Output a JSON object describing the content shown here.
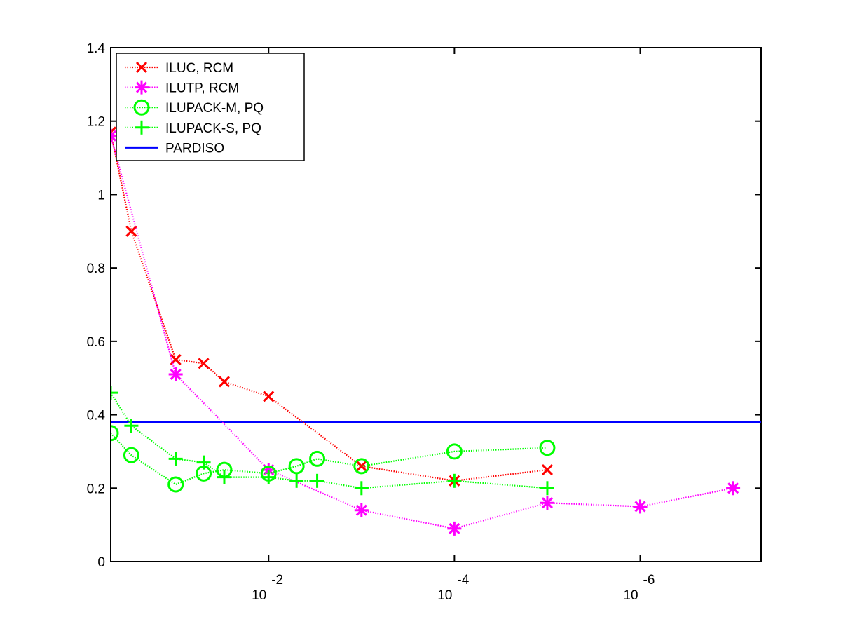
{
  "chart_data": {
    "type": "line",
    "title": "",
    "xlabel": "",
    "ylabel": "",
    "x_scale": "log",
    "x_reversed": true,
    "xlim": [
      0.5,
      5e-08
    ],
    "ylim": [
      0,
      1.4
    ],
    "x_ticks": [
      {
        "value": 0.01,
        "base": "10",
        "exp": "-2"
      },
      {
        "value": 0.0001,
        "base": "10",
        "exp": "-4"
      },
      {
        "value": 1e-06,
        "base": "10",
        "exp": "-6"
      }
    ],
    "y_ticks": [
      "0",
      "0.2",
      "0.4",
      "0.6",
      "0.8",
      "1",
      "1.2",
      "1.4"
    ],
    "y_tick_values": [
      0,
      0.2,
      0.4,
      0.6,
      0.8,
      1.0,
      1.2,
      1.4
    ],
    "legend_position": "top-left",
    "series": [
      {
        "name": "ILUC, RCM",
        "color": "#ff0000",
        "marker": "x",
        "line": "dotted",
        "points": [
          [
            0.5,
            1.17
          ],
          [
            0.3,
            0.9
          ],
          [
            0.1,
            0.55
          ],
          [
            0.05,
            0.54
          ],
          [
            0.03,
            0.49
          ],
          [
            0.01,
            0.45
          ],
          [
            0.001,
            0.26
          ],
          [
            0.0001,
            0.22
          ],
          [
            1e-05,
            0.25
          ]
        ]
      },
      {
        "name": "ILUTP, RCM",
        "color": "#ff00ff",
        "marker": "asterisk",
        "line": "dotted",
        "points": [
          [
            0.5,
            1.16
          ],
          [
            0.1,
            0.51
          ],
          [
            0.01,
            0.25
          ],
          [
            0.001,
            0.14
          ],
          [
            0.0001,
            0.09
          ],
          [
            1e-05,
            0.16
          ],
          [
            1e-06,
            0.15
          ],
          [
            1e-07,
            0.2
          ]
        ]
      },
      {
        "name": "ILUPACK-M, PQ",
        "color": "#00ff00",
        "marker": "circle",
        "line": "dotted",
        "points": [
          [
            0.5,
            0.35
          ],
          [
            0.3,
            0.29
          ],
          [
            0.1,
            0.21
          ],
          [
            0.05,
            0.24
          ],
          [
            0.03,
            0.25
          ],
          [
            0.01,
            0.24
          ],
          [
            0.005,
            0.26
          ],
          [
            0.003,
            0.28
          ],
          [
            0.001,
            0.26
          ],
          [
            0.0001,
            0.3
          ],
          [
            1e-05,
            0.31
          ]
        ]
      },
      {
        "name": "ILUPACK-S, PQ",
        "color": "#00ff00",
        "marker": "plus",
        "line": "dotted",
        "points": [
          [
            0.5,
            0.46
          ],
          [
            0.3,
            0.37
          ],
          [
            0.1,
            0.28
          ],
          [
            0.05,
            0.27
          ],
          [
            0.03,
            0.23
          ],
          [
            0.01,
            0.23
          ],
          [
            0.005,
            0.22
          ],
          [
            0.003,
            0.22
          ],
          [
            0.001,
            0.2
          ],
          [
            0.0001,
            0.22
          ],
          [
            1e-05,
            0.2
          ]
        ]
      },
      {
        "name": "PARDISO",
        "color": "#0000ff",
        "marker": "none",
        "line": "solid",
        "points": [
          [
            0.5,
            0.38
          ],
          [
            5e-08,
            0.38
          ]
        ]
      }
    ]
  }
}
